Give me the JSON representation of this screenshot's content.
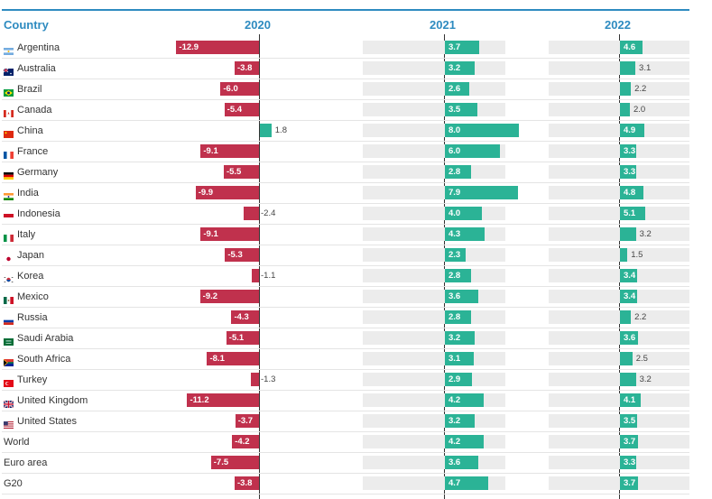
{
  "chart_data": {
    "type": "bar",
    "title": "",
    "category_label": "Country",
    "categories": [
      "Argentina",
      "Australia",
      "Brazil",
      "Canada",
      "China",
      "France",
      "Germany",
      "India",
      "Indonesia",
      "Italy",
      "Japan",
      "Korea",
      "Mexico",
      "Russia",
      "Saudi Arabia",
      "South Africa",
      "Turkey",
      "United Kingdom",
      "United States",
      "World",
      "Euro area",
      "G20"
    ],
    "flags": [
      "ar",
      "au",
      "br",
      "ca",
      "cn",
      "fr",
      "de",
      "in",
      "id",
      "it",
      "jp",
      "kr",
      "mx",
      "ru",
      "sa",
      "za",
      "tr",
      "gb",
      "us",
      "",
      "",
      ""
    ],
    "series": [
      {
        "name": "2020",
        "values": [
          -12.9,
          -3.8,
          -6.0,
          -5.4,
          1.8,
          -9.1,
          -5.5,
          -9.9,
          -2.4,
          -9.1,
          -5.3,
          -1.1,
          -9.2,
          -4.3,
          -5.1,
          -8.1,
          -1.3,
          -11.2,
          -3.7,
          -4.2,
          -7.5,
          -3.8
        ]
      },
      {
        "name": "2021",
        "values": [
          3.7,
          3.2,
          2.6,
          3.5,
          8.0,
          6.0,
          2.8,
          7.9,
          4.0,
          4.3,
          2.3,
          2.8,
          3.6,
          2.8,
          3.2,
          3.1,
          2.9,
          4.2,
          3.2,
          4.2,
          3.6,
          4.7
        ]
      },
      {
        "name": "2022",
        "values": [
          4.6,
          3.1,
          2.2,
          2.0,
          4.9,
          3.3,
          3.3,
          4.8,
          5.1,
          3.2,
          1.5,
          3.4,
          3.4,
          2.2,
          3.6,
          2.5,
          3.2,
          4.1,
          3.5,
          3.7,
          3.3,
          3.7
        ]
      }
    ],
    "colors": {
      "negative": "#c0314d",
      "positive": "#2bb396",
      "header": "#2e8bc0",
      "track": "#ececec"
    }
  }
}
